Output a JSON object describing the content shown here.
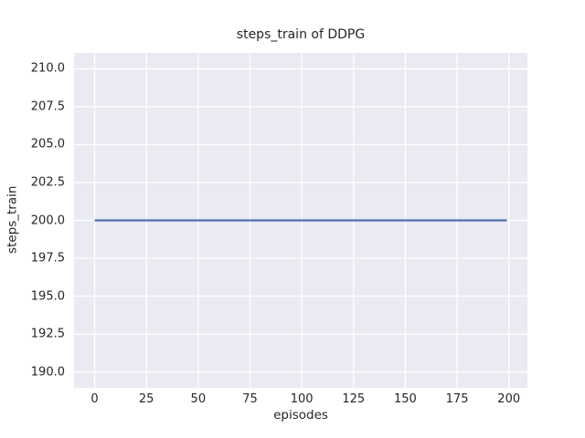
{
  "chart_data": {
    "type": "line",
    "title": "steps_train of DDPG",
    "xlabel": "episodes",
    "ylabel": "steps_train",
    "x_tick_labels": [
      "0",
      "25",
      "50",
      "75",
      "100",
      "125",
      "150",
      "175",
      "200"
    ],
    "y_tick_labels": [
      "190.0",
      "192.5",
      "195.0",
      "197.5",
      "200.0",
      "202.5",
      "205.0",
      "207.5",
      "210.0"
    ],
    "xlim": [
      -9.95,
      208.95
    ],
    "ylim": [
      188.95,
      211.05
    ],
    "grid": true,
    "legend": "none",
    "series": [
      {
        "name": "steps_train",
        "color": "#4c72b0",
        "x": [
          0,
          199
        ],
        "y": [
          200,
          200
        ],
        "note": "constant value 200 across all episodes"
      }
    ],
    "styles": {
      "axes_background": "#eaeaf2",
      "grid_color": "#ffffff",
      "text_color": "#262626",
      "figure_background": "#ffffff"
    }
  }
}
